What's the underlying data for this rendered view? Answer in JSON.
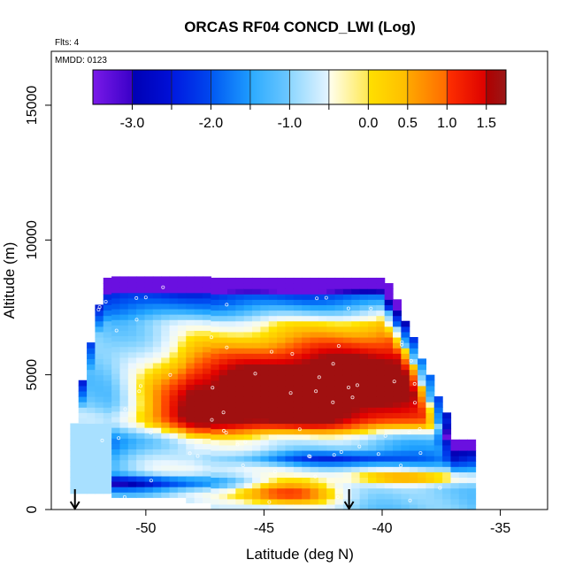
{
  "chart_data": {
    "type": "heatmap",
    "title": "ORCAS RF04 CONCD_LWI (Log)",
    "xlabel": "Latitude (deg N)",
    "ylabel": "Altitude (m)",
    "flights_note": "Flts: 4",
    "date_note": "MMDD: 0123",
    "xlim": [
      -54,
      -33
    ],
    "ylim": [
      0,
      17000
    ],
    "x_ticks": [
      {
        "value": -50,
        "label": "-50"
      },
      {
        "value": -45,
        "label": "-45"
      },
      {
        "value": -40,
        "label": "-40"
      },
      {
        "value": -35,
        "label": "-35"
      }
    ],
    "y_ticks": [
      {
        "value": 0,
        "label": "0"
      },
      {
        "value": 5000,
        "label": "5000"
      },
      {
        "value": 10000,
        "label": "10000"
      },
      {
        "value": 15000,
        "label": "15000"
      }
    ],
    "colorbar": {
      "range": [
        -3.5,
        1.75
      ],
      "ticks": [
        {
          "value": -3.0,
          "label": "-3.0"
        },
        {
          "value": -2.0,
          "label": "-2.0"
        },
        {
          "value": -1.0,
          "label": "-1.0"
        },
        {
          "value": 0.0,
          "label": "0.0"
        },
        {
          "value": 0.5,
          "label": "0.5"
        },
        {
          "value": 1.0,
          "label": "1.0"
        },
        {
          "value": 1.5,
          "label": "1.5"
        }
      ],
      "bands": [
        {
          "from": -3.5,
          "to": -3.0,
          "colors": [
            "#7a1ae8",
            "#3a00c8"
          ]
        },
        {
          "from": -3.0,
          "to": -2.5,
          "colors": [
            "#0000b4",
            "#0010d8"
          ]
        },
        {
          "from": -2.5,
          "to": -2.0,
          "colors": [
            "#0018e0",
            "#0048ee"
          ]
        },
        {
          "from": -2.0,
          "to": -1.5,
          "colors": [
            "#0058f2",
            "#1e9cff"
          ]
        },
        {
          "from": -1.5,
          "to": -1.0,
          "colors": [
            "#2aaaff",
            "#6ec8ff"
          ]
        },
        {
          "from": -1.0,
          "to": -0.5,
          "colors": [
            "#8cd6ff",
            "#e6f5ff"
          ]
        },
        {
          "from": -0.5,
          "to": 0.0,
          "colors": [
            "#fffff0",
            "#ffe850"
          ]
        },
        {
          "from": 0.0,
          "to": 0.5,
          "colors": [
            "#ffe000",
            "#ffbc00"
          ]
        },
        {
          "from": 0.5,
          "to": 1.0,
          "colors": [
            "#ffa800",
            "#ff6a00"
          ]
        },
        {
          "from": 1.0,
          "to": 1.5,
          "colors": [
            "#ff3000",
            "#dc0000"
          ]
        },
        {
          "from": 1.5,
          "to": 1.75,
          "colors": [
            "#b00000",
            "#9a1818"
          ]
        }
      ]
    },
    "field": {
      "lat_min": -53.2,
      "lat_max": -36.2,
      "lat_step": 0.35,
      "alt_step": 200,
      "color_scale": [
        {
          "v": -3.4,
          "c": "#6a10e0"
        },
        {
          "v": -3.0,
          "c": "#0000b4"
        },
        {
          "v": -2.5,
          "c": "#0030e8"
        },
        {
          "v": -2.0,
          "c": "#0066f6"
        },
        {
          "v": -1.5,
          "c": "#22a6ff"
        },
        {
          "v": -1.0,
          "c": "#7cd0ff"
        },
        {
          "v": -0.5,
          "c": "#eaf7ff"
        },
        {
          "v": -0.25,
          "c": "#fffde0"
        },
        {
          "v": 0.0,
          "c": "#ffe400"
        },
        {
          "v": 0.5,
          "c": "#ffae00"
        },
        {
          "v": 1.0,
          "c": "#ff4a00"
        },
        {
          "v": 1.5,
          "c": "#e00000"
        },
        {
          "v": 1.75,
          "c": "#a01010"
        }
      ]
    },
    "flight_marks": [
      {
        "lat": -53.0,
        "alt": 0
      },
      {
        "lat": -41.4,
        "alt": 0
      }
    ]
  }
}
